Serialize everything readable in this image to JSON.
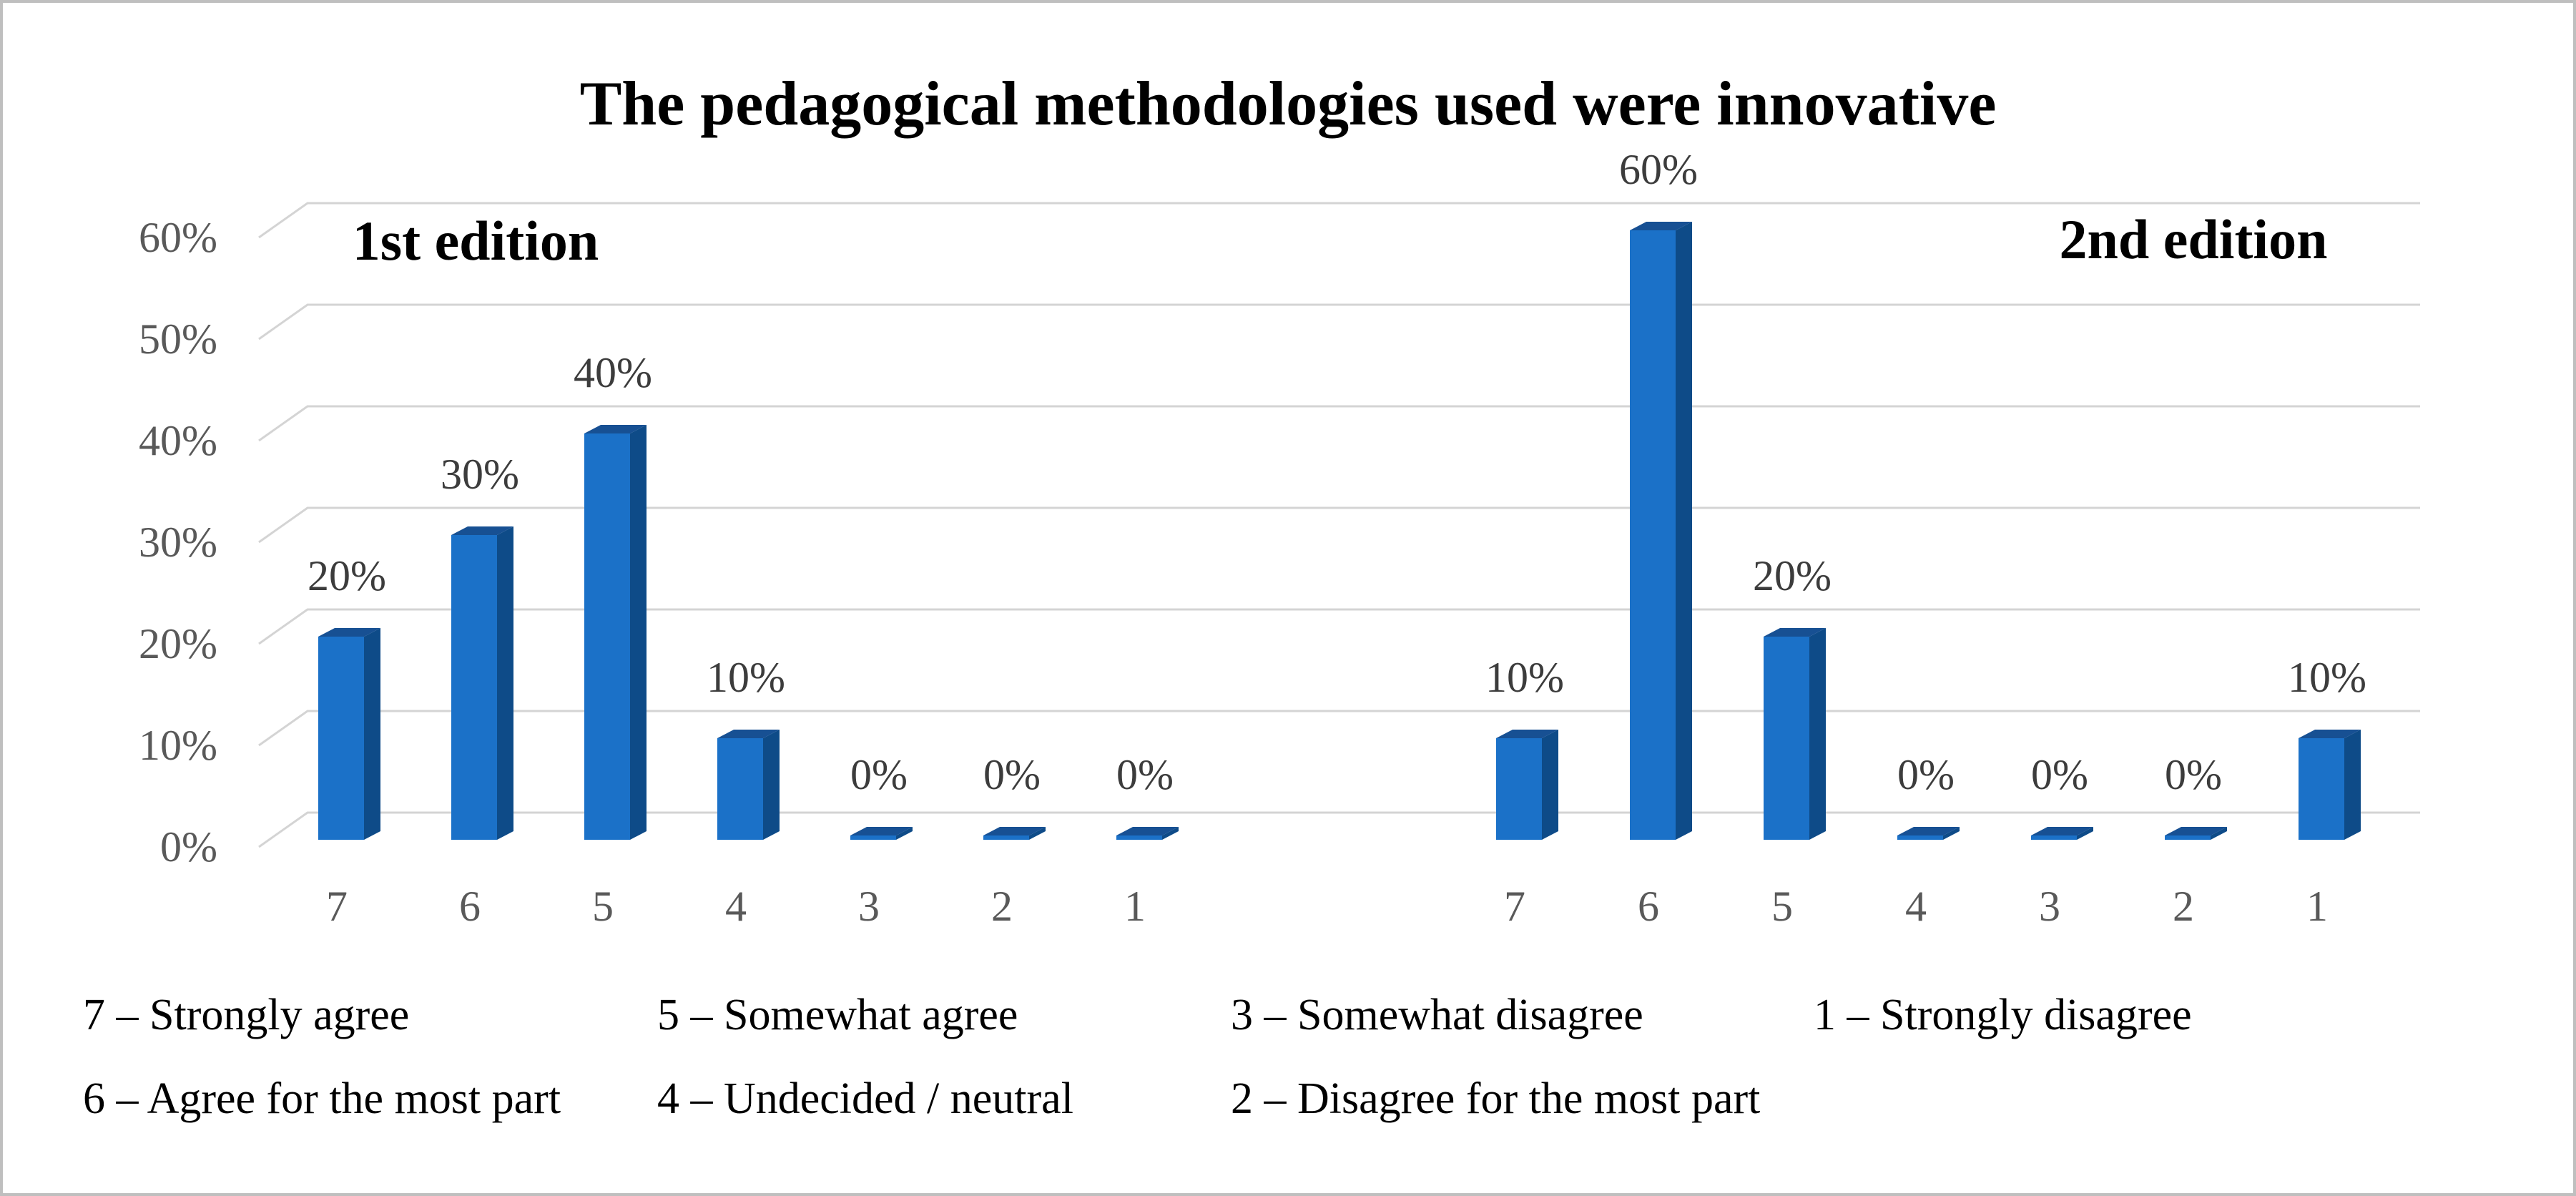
{
  "chart_data": {
    "type": "bar",
    "variant": "3d-column",
    "title": "The pedagogical methodologies used were innovative",
    "categories": [
      "7",
      "6",
      "5",
      "4",
      "3",
      "2",
      "1"
    ],
    "series": [
      {
        "name": "1st edition",
        "values": [
          20,
          30,
          40,
          10,
          0,
          0,
          0
        ]
      },
      {
        "name": "2nd edition",
        "values": [
          10,
          60,
          20,
          0,
          0,
          0,
          10
        ]
      }
    ],
    "data_labels": [
      [
        "20%",
        "30%",
        "40%",
        "10%",
        "0%",
        "0%",
        "0%"
      ],
      [
        "10%",
        "60%",
        "20%",
        "0%",
        "0%",
        "0%",
        "10%"
      ]
    ],
    "xlabel": "",
    "ylabel": "",
    "ylim": [
      0,
      60
    ],
    "yticks": [
      0,
      10,
      20,
      30,
      40,
      50,
      60
    ],
    "ytick_labels": [
      "0%",
      "10%",
      "20%",
      "30%",
      "40%",
      "50%",
      "60%"
    ],
    "grid": true,
    "legend_position": "bottom"
  },
  "legend": {
    "items": [
      "7 – Strongly agree",
      "5 – Somewhat agree",
      "3 – Somewhat disagree",
      "1 – Strongly disagree",
      "6 – Agree for the most part",
      "4 – Undecided / neutral",
      "2 – Disagree for the most part"
    ]
  },
  "colors": {
    "bar_front": "#1B71C8",
    "bar_side": "#0E4B88",
    "bar_top": "#175093",
    "gridline": "#D4D4D4",
    "tick_text": "#595959",
    "data_label_text": "#3C3C3C",
    "text": "#000000",
    "frame_border": "#BFBFBF",
    "background": "#FFFFFF"
  }
}
